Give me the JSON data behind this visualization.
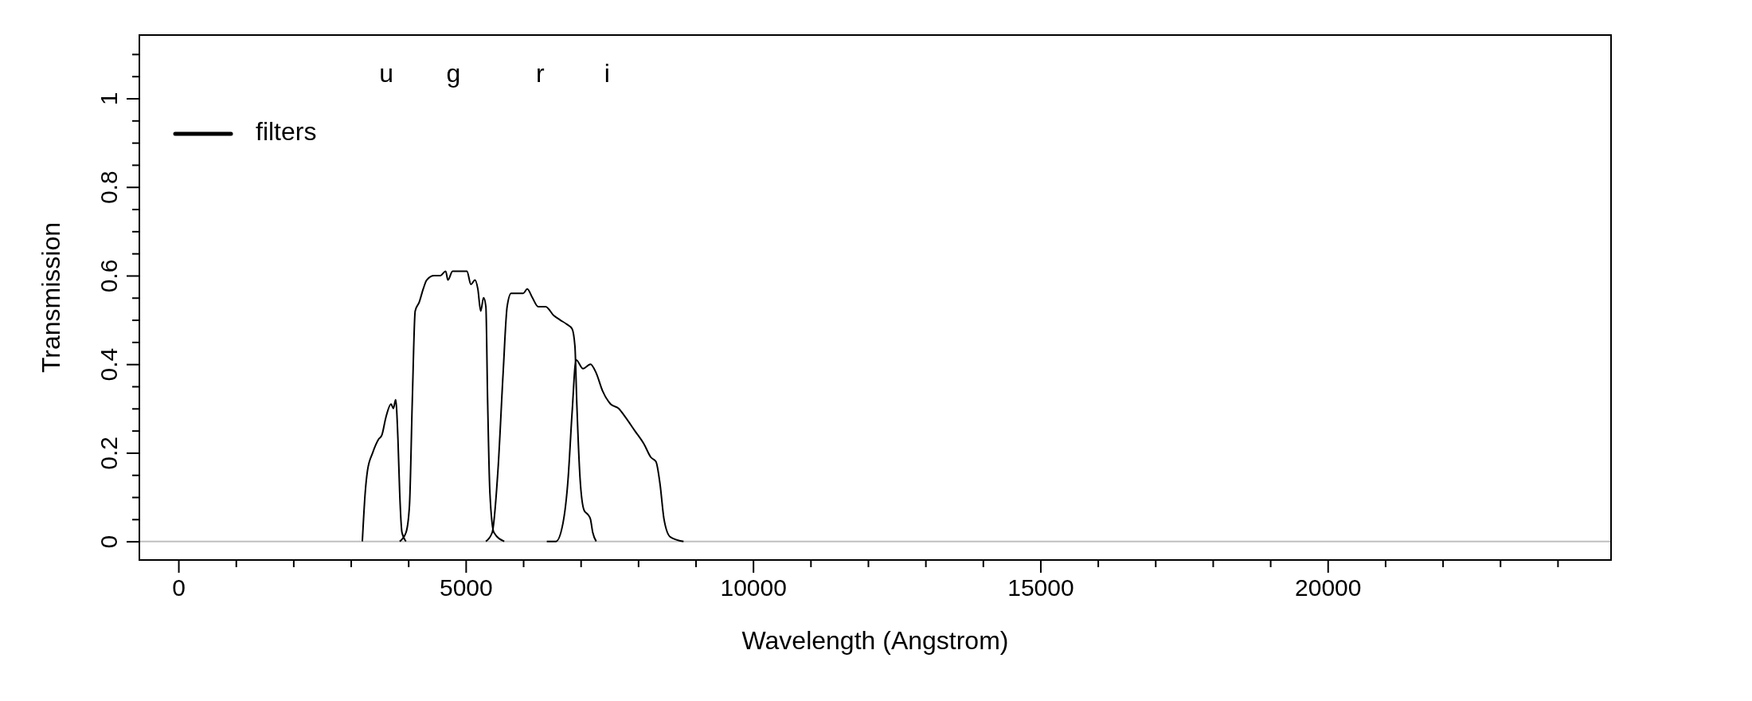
{
  "chart_data": {
    "type": "line",
    "xlabel": "Wavelength (Angstrom)",
    "ylabel": "Transmission",
    "xlim": [
      -680,
      24930
    ],
    "ylim": [
      -0.042,
      1.143
    ],
    "xticks": [
      0,
      {
        "value": 1000,
        "label": null
      },
      {
        "value": 2000,
        "label": null
      },
      {
        "value": 3000,
        "label": null
      },
      {
        "value": 4000,
        "label": null
      },
      5000,
      {
        "value": 6000,
        "label": null
      },
      {
        "value": 7000,
        "label": null
      },
      {
        "value": 8000,
        "label": null
      },
      {
        "value": 9000,
        "label": null
      },
      10000,
      {
        "value": 11000,
        "label": null
      },
      {
        "value": 12000,
        "label": null
      },
      {
        "value": 13000,
        "label": null
      },
      {
        "value": 14000,
        "label": null
      },
      15000,
      {
        "value": 16000,
        "label": null
      },
      {
        "value": 17000,
        "label": null
      },
      {
        "value": 18000,
        "label": null
      },
      {
        "value": 19000,
        "label": null
      },
      20000,
      {
        "value": 21000,
        "label": null
      },
      {
        "value": 22000,
        "label": null
      },
      {
        "value": 23000,
        "label": null
      },
      {
        "value": 24000,
        "label": null
      }
    ],
    "yticks": [
      0,
      {
        "value": 0.05,
        "label": null
      },
      {
        "value": 0.1,
        "label": null
      },
      {
        "value": 0.15,
        "label": null
      },
      0.2,
      {
        "value": 0.25,
        "label": null
      },
      {
        "value": 0.3,
        "label": null
      },
      {
        "value": 0.35,
        "label": null
      },
      0.4,
      {
        "value": 0.45,
        "label": null
      },
      {
        "value": 0.5,
        "label": null
      },
      {
        "value": 0.55,
        "label": null
      },
      0.6,
      {
        "value": 0.65,
        "label": null
      },
      {
        "value": 0.7,
        "label": null
      },
      {
        "value": 0.75,
        "label": null
      },
      0.8,
      {
        "value": 0.85,
        "label": null
      },
      {
        "value": 0.9,
        "label": null
      },
      {
        "value": 0.95,
        "label": null
      },
      1,
      {
        "value": 1.05,
        "label": null
      },
      {
        "value": 1.1,
        "label": null
      }
    ],
    "series": [
      {
        "name": "filters",
        "color": "#000000",
        "x": [
          3200,
          3250,
          3290,
          3380,
          3480,
          3540,
          3610,
          3700,
          3740,
          3780,
          3820,
          3850,
          3890,
          3960
        ],
        "values": [
          0,
          0.11,
          0.16,
          0.2,
          0.23,
          0.24,
          0.28,
          0.31,
          0.3,
          0.32,
          0.23,
          0.11,
          0.02,
          0
        ]
      },
      {
        "color": "#000000",
        "x": [
          3850,
          3960,
          4020,
          4070,
          4120,
          4190,
          4260,
          4320,
          4450,
          4560,
          4650,
          4690,
          4770,
          4860,
          4950,
          5020,
          5090,
          5160,
          5210,
          5260,
          5310,
          5350,
          5380,
          5420,
          5490,
          5670
        ],
        "values": [
          0,
          0.02,
          0.08,
          0.32,
          0.52,
          0.54,
          0.57,
          0.59,
          0.6,
          0.6,
          0.61,
          0.59,
          0.61,
          0.61,
          0.61,
          0.61,
          0.58,
          0.59,
          0.57,
          0.52,
          0.55,
          0.53,
          0.32,
          0.11,
          0.02,
          0
        ]
      },
      {
        "color": "#000000",
        "x": [
          5350,
          5460,
          5560,
          5650,
          5720,
          5790,
          5930,
          6000,
          6070,
          6160,
          6260,
          6390,
          6530,
          6640,
          6760,
          6850,
          6900,
          6930,
          6990,
          7060,
          7130,
          7170,
          7210,
          7270
        ],
        "values": [
          0,
          0.02,
          0.16,
          0.38,
          0.53,
          0.56,
          0.56,
          0.56,
          0.57,
          0.55,
          0.53,
          0.53,
          0.51,
          0.5,
          0.49,
          0.48,
          0.44,
          0.32,
          0.14,
          0.07,
          0.06,
          0.05,
          0.02,
          0
        ]
      },
      {
        "color": "#000000",
        "x": [
          6410,
          6570,
          6690,
          6780,
          6850,
          6920,
          7040,
          7170,
          7270,
          7380,
          7520,
          7660,
          7780,
          7940,
          8100,
          8220,
          8310,
          8380,
          8450,
          8560,
          8790
        ],
        "values": [
          0,
          0,
          0.04,
          0.14,
          0.29,
          0.41,
          0.39,
          0.4,
          0.38,
          0.34,
          0.31,
          0.3,
          0.28,
          0.25,
          0.22,
          0.19,
          0.18,
          0.13,
          0.05,
          0.01,
          0
        ]
      }
    ],
    "ref_lines": [
      {
        "axis": "y",
        "value": 0,
        "color": "#c0c0c0"
      }
    ],
    "annotations": [
      "u",
      "g",
      "r",
      "i"
    ],
    "legend": "top left",
    "grid": false
  }
}
